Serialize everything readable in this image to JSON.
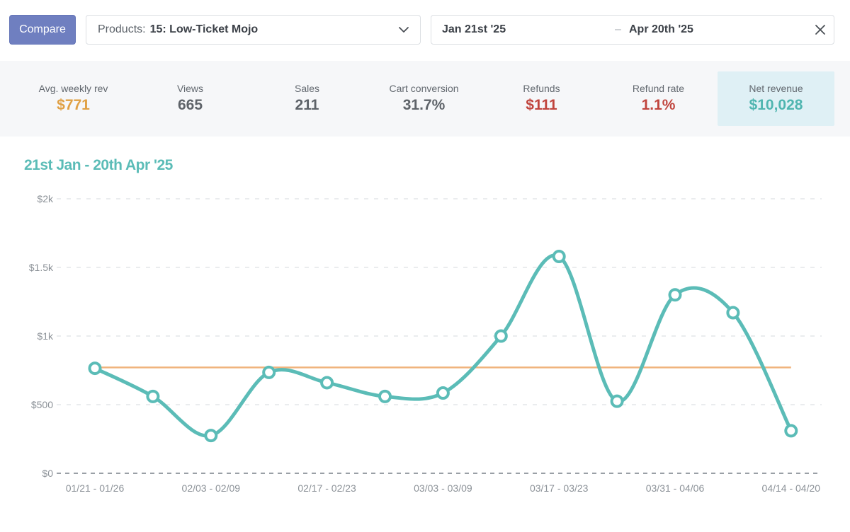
{
  "toolbar": {
    "compare_label": "Compare",
    "product_label": "Products:",
    "product_value": "15: Low-Ticket Mojo",
    "date_start": "Jan 21st '25",
    "date_separator": "–",
    "date_end": "Apr 20th '25"
  },
  "stats": [
    {
      "label": "Avg. weekly rev",
      "value": "$771",
      "color": "#e0a044"
    },
    {
      "label": "Views",
      "value": "665",
      "color": "#5e6369"
    },
    {
      "label": "Sales",
      "value": "211",
      "color": "#5e6369"
    },
    {
      "label": "Cart conversion",
      "value": "31.7%",
      "color": "#5e6369"
    },
    {
      "label": "Refunds",
      "value": "$111",
      "color": "#c0443d"
    },
    {
      "label": "Refund rate",
      "value": "1.1%",
      "color": "#c0443d"
    },
    {
      "label": "Net revenue",
      "value": "$10,028",
      "color": "#4fb5b0",
      "active": true
    }
  ],
  "colors": {
    "series": "#5bbcb7",
    "average_line": "#f0b47e",
    "active_stat_bg": "#dff0f5"
  },
  "chart_data": {
    "type": "line",
    "title": "21st Jan - 20th Apr '25",
    "xlabel": "",
    "ylabel": "",
    "ylim": [
      0,
      2000
    ],
    "y_ticks": [
      0,
      500,
      1000,
      1500,
      2000
    ],
    "y_tick_labels": [
      "$0",
      "$500",
      "$1k",
      "$1.5k",
      "$2k"
    ],
    "grid": true,
    "x_tick_labels": [
      "01/21 - 01/26",
      "02/03 - 02/09",
      "02/17 - 02/23",
      "03/03 - 03/09",
      "03/17 - 03/23",
      "03/31 - 04/06",
      "04/14 - 04/20"
    ],
    "x_tick_every": 2,
    "series": [
      {
        "values": [
          765,
          560,
          275,
          735,
          660,
          560,
          585,
          1000,
          1580,
          525,
          1300,
          1170,
          310
        ]
      }
    ],
    "average_line": 771
  }
}
